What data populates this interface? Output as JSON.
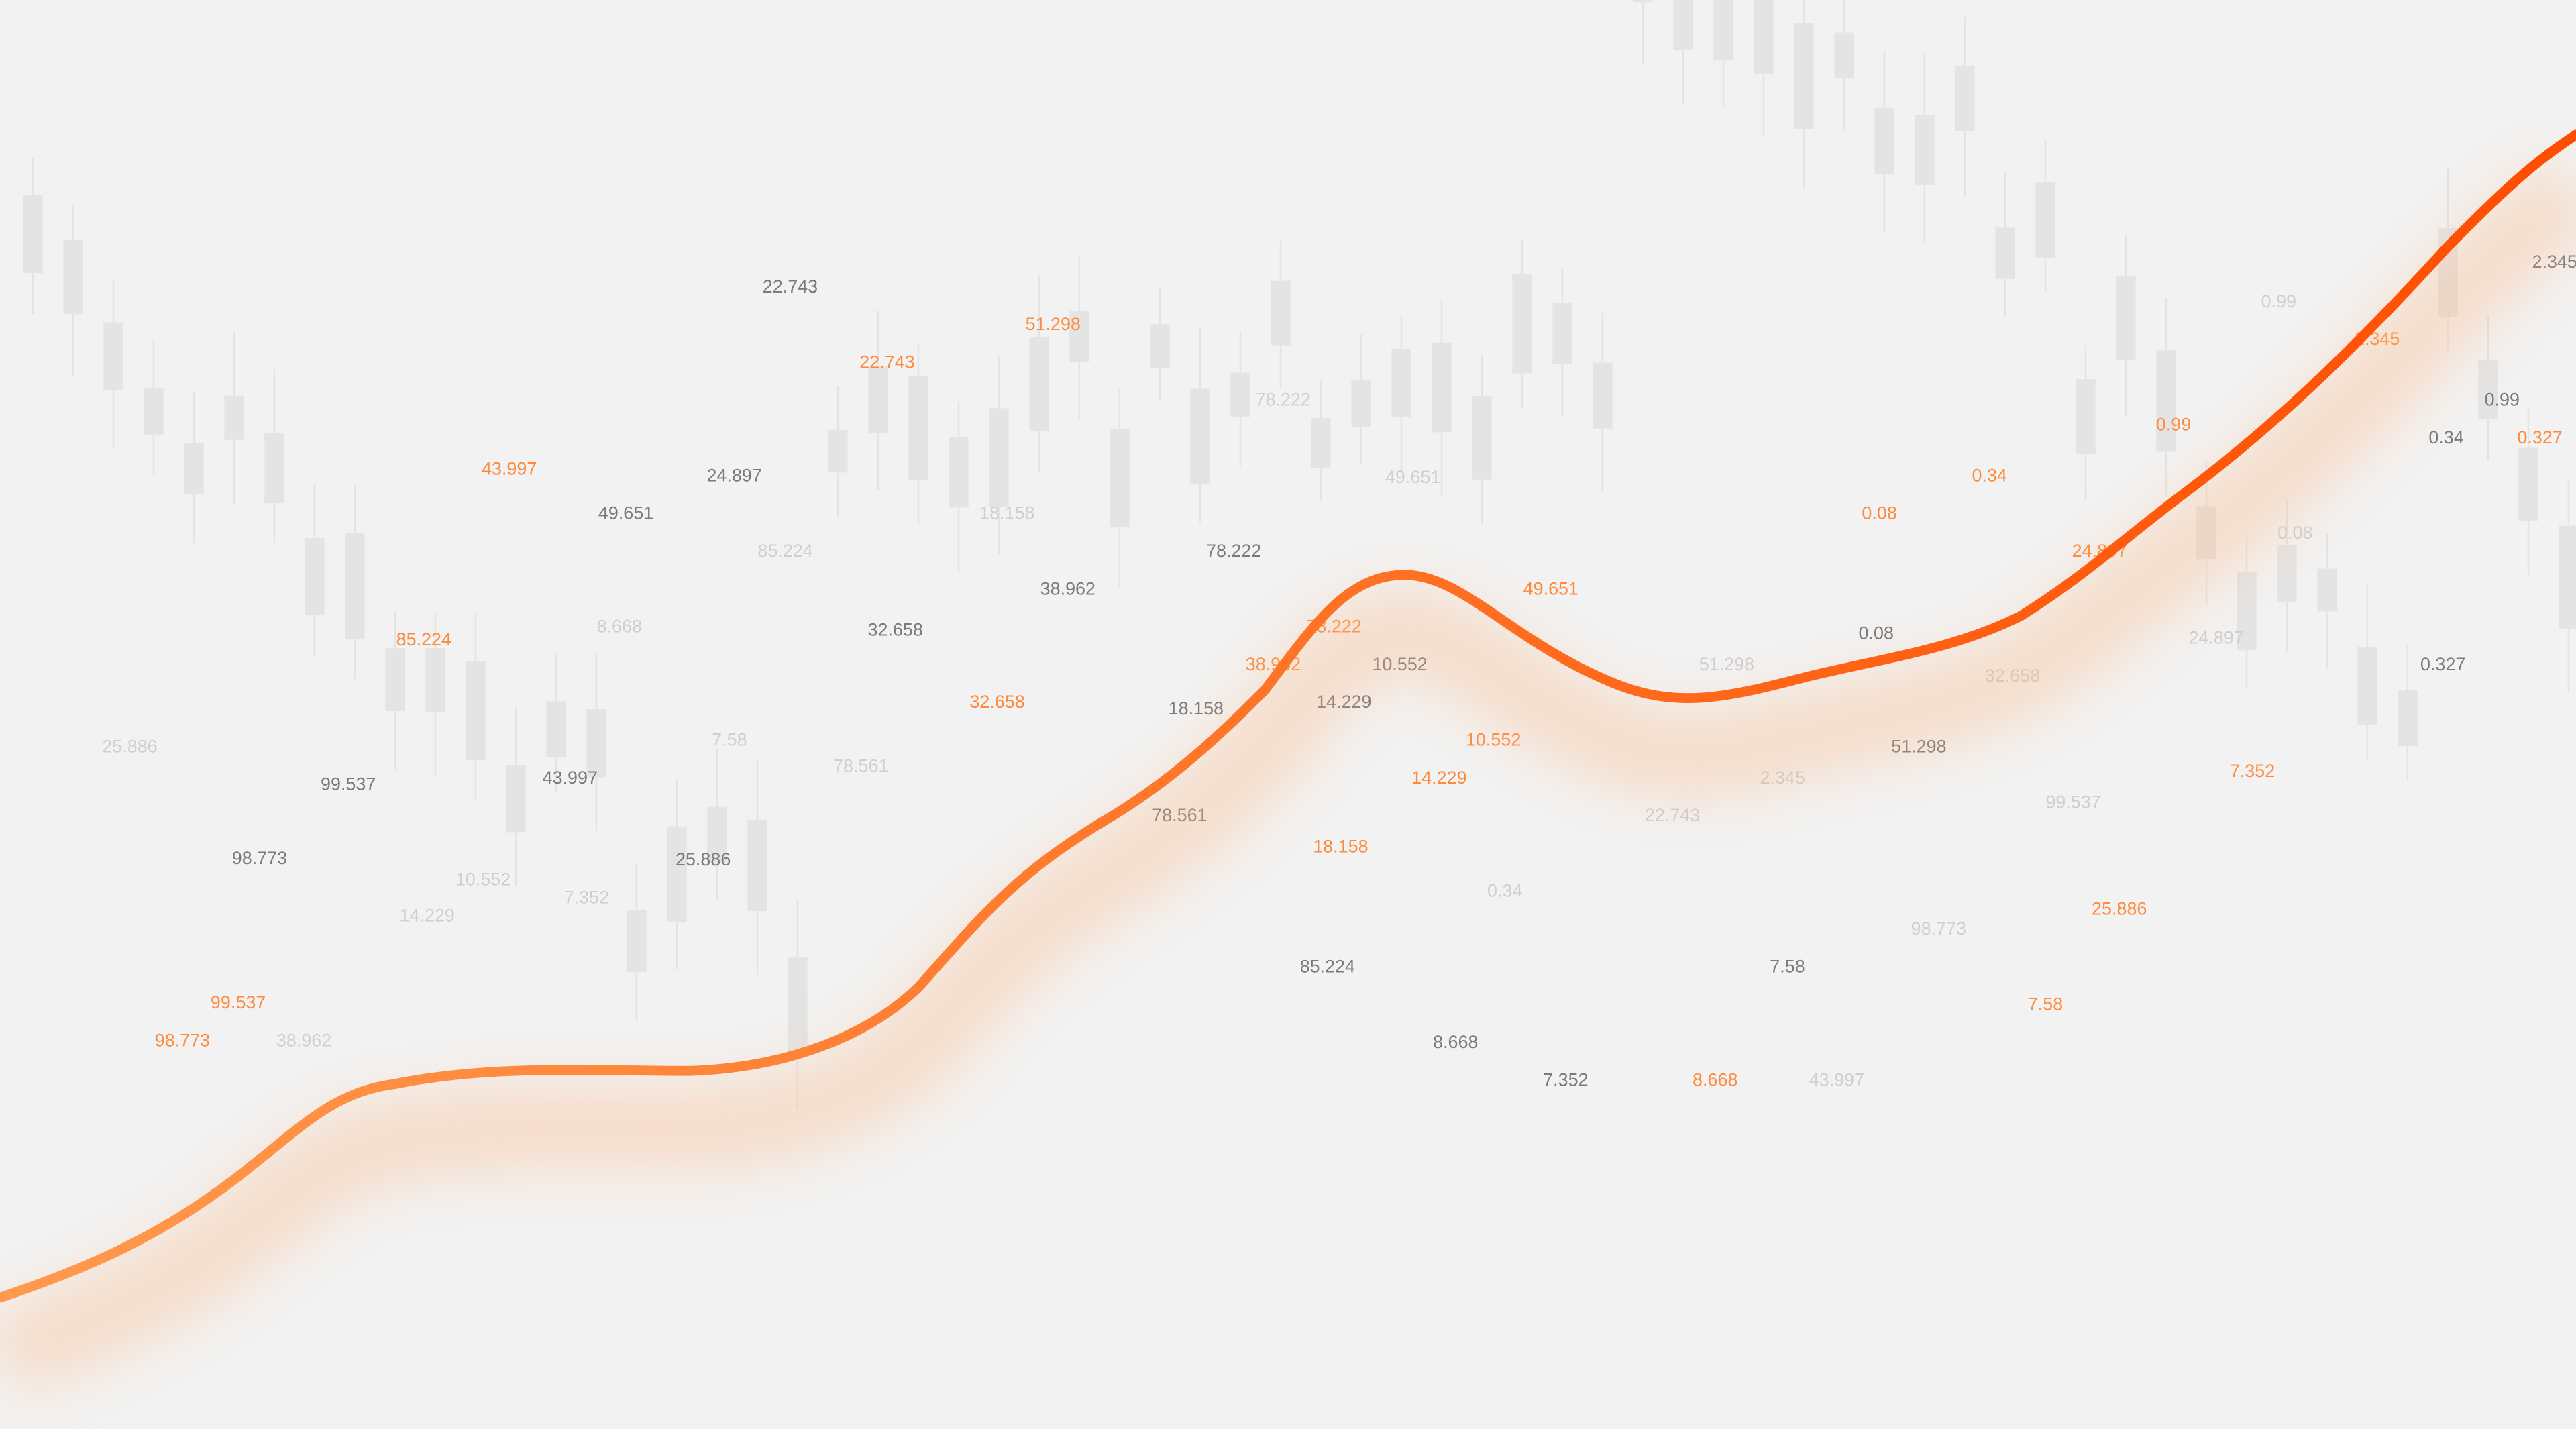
{
  "chart_data": {
    "type": "line",
    "title": "",
    "background_color": "#f2f2f2",
    "line_colors": [
      "#ff9a4d",
      "#ff4d00"
    ],
    "glow_color": "#ffb27a",
    "candlestick_color": "#e4e4e4",
    "trend": "rising",
    "labels": [
      {
        "text": "22.743",
        "tone": "gray"
      },
      {
        "text": "22.743",
        "tone": "orange"
      },
      {
        "text": "51.298",
        "tone": "orange"
      },
      {
        "text": "78.222",
        "tone": "faint"
      },
      {
        "text": "43.997",
        "tone": "orange"
      },
      {
        "text": "24.897",
        "tone": "gray"
      },
      {
        "text": "49.651",
        "tone": "gray"
      },
      {
        "text": "18.158",
        "tone": "faint"
      },
      {
        "text": "85.224",
        "tone": "faint"
      },
      {
        "text": "49.651",
        "tone": "faint"
      },
      {
        "text": "78.222",
        "tone": "gray"
      },
      {
        "text": "38.962",
        "tone": "gray"
      },
      {
        "text": "85.224",
        "tone": "orange"
      },
      {
        "text": "8.668",
        "tone": "faint"
      },
      {
        "text": "32.658",
        "tone": "gray"
      },
      {
        "text": "38.962",
        "tone": "orange"
      },
      {
        "text": "78.222",
        "tone": "orange"
      },
      {
        "text": "10.552",
        "tone": "gray"
      },
      {
        "text": "49.651",
        "tone": "orange"
      },
      {
        "text": "18.158",
        "tone": "gray"
      },
      {
        "text": "14.229",
        "tone": "gray"
      },
      {
        "text": "32.658",
        "tone": "orange"
      },
      {
        "text": "10.552",
        "tone": "orange"
      },
      {
        "text": "14.229",
        "tone": "orange"
      },
      {
        "text": "51.298",
        "tone": "faint"
      },
      {
        "text": "0.08",
        "tone": "orange"
      },
      {
        "text": "0.34",
        "tone": "orange"
      },
      {
        "text": "0.99",
        "tone": "orange"
      },
      {
        "text": "0.99",
        "tone": "faint"
      },
      {
        "text": "2.345",
        "tone": "orange"
      },
      {
        "text": "2.345",
        "tone": "gray"
      },
      {
        "text": "0.99",
        "tone": "gray"
      },
      {
        "text": "0.34",
        "tone": "gray"
      },
      {
        "text": "0.327",
        "tone": "orange"
      },
      {
        "text": "0.08",
        "tone": "faint"
      },
      {
        "text": "24.897",
        "tone": "orange"
      },
      {
        "text": "0.08",
        "tone": "gray"
      },
      {
        "text": "24.897",
        "tone": "faint"
      },
      {
        "text": "0.327",
        "tone": "gray"
      },
      {
        "text": "32.658",
        "tone": "faint"
      },
      {
        "text": "51.298",
        "tone": "gray"
      },
      {
        "text": "7.352",
        "tone": "orange"
      },
      {
        "text": "99.537",
        "tone": "faint"
      },
      {
        "text": "2.345",
        "tone": "faint"
      },
      {
        "text": "22.743",
        "tone": "faint"
      },
      {
        "text": "25.886",
        "tone": "faint"
      },
      {
        "text": "7.58",
        "tone": "faint"
      },
      {
        "text": "78.561",
        "tone": "faint"
      },
      {
        "text": "99.537",
        "tone": "gray"
      },
      {
        "text": "43.997",
        "tone": "gray"
      },
      {
        "text": "98.773",
        "tone": "gray"
      },
      {
        "text": "25.886",
        "tone": "gray"
      },
      {
        "text": "10.552",
        "tone": "faint"
      },
      {
        "text": "7.352",
        "tone": "faint"
      },
      {
        "text": "14.229",
        "tone": "faint"
      },
      {
        "text": "78.561",
        "tone": "gray"
      },
      {
        "text": "18.158",
        "tone": "orange"
      },
      {
        "text": "0.34",
        "tone": "faint"
      },
      {
        "text": "98.773",
        "tone": "faint"
      },
      {
        "text": "25.886",
        "tone": "orange"
      },
      {
        "text": "85.224",
        "tone": "gray"
      },
      {
        "text": "7.58",
        "tone": "gray"
      },
      {
        "text": "7.58",
        "tone": "orange"
      },
      {
        "text": "99.537",
        "tone": "orange"
      },
      {
        "text": "98.773",
        "tone": "orange"
      },
      {
        "text": "38.962",
        "tone": "faint"
      },
      {
        "text": "8.668",
        "tone": "gray"
      },
      {
        "text": "7.352",
        "tone": "gray"
      },
      {
        "text": "8.668",
        "tone": "orange"
      },
      {
        "text": "43.997",
        "tone": "faint"
      }
    ]
  }
}
